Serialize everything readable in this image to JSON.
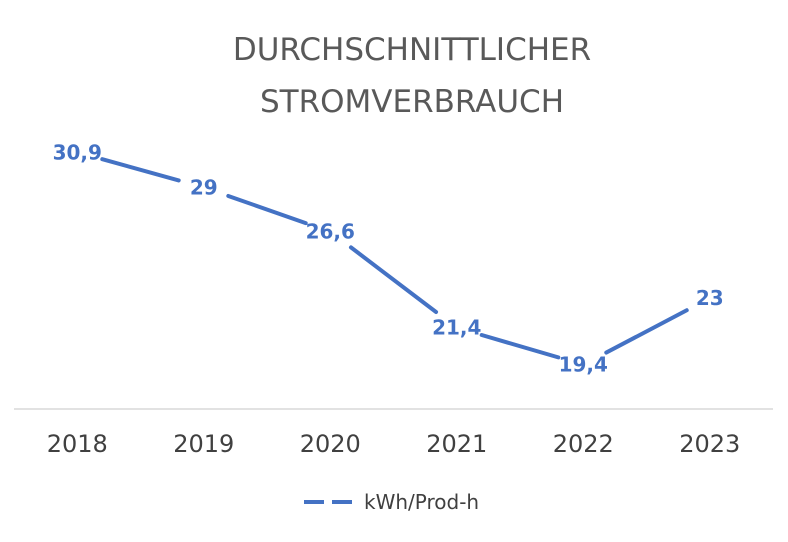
{
  "chart_data": {
    "type": "line",
    "title_lines": [
      "DURCHSCHNITTLICHER",
      "STROMVERBRAUCH"
    ],
    "categories": [
      "2018",
      "2019",
      "2020",
      "2021",
      "2022",
      "2023"
    ],
    "series": [
      {
        "name": "kWh/Prod-h",
        "values": [
          30.9,
          29,
          26.6,
          21.4,
          19.4,
          23
        ],
        "labels": [
          "30,9",
          "29",
          "26,6",
          "21,4",
          "19,4",
          "23"
        ],
        "color": "#4472C4"
      }
    ],
    "xlabel": "",
    "ylabel": "",
    "ylim": [
      17,
      34
    ],
    "grid": false,
    "legend": "bottom"
  }
}
